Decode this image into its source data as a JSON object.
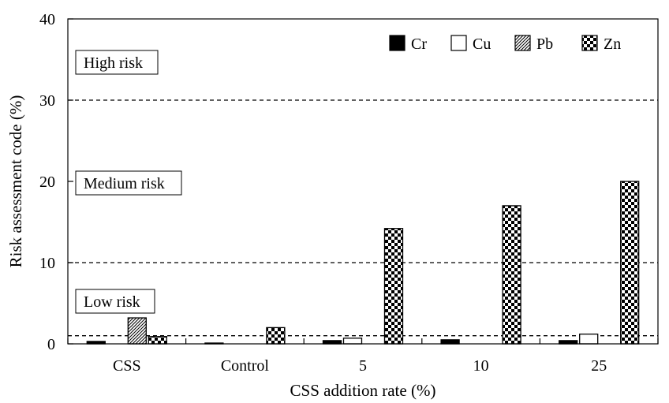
{
  "chart_data": {
    "type": "bar",
    "categories": [
      "CSS",
      "Control",
      "5",
      "10",
      "25"
    ],
    "series": [
      {
        "name": "Cr",
        "pattern": "solid",
        "values": [
          0.3,
          0.1,
          0.4,
          0.5,
          0.4
        ]
      },
      {
        "name": "Cu",
        "pattern": "hollow",
        "values": [
          0.0,
          0.0,
          0.7,
          0.0,
          1.2
        ]
      },
      {
        "name": "Pb",
        "pattern": "hatch",
        "values": [
          3.2,
          0.0,
          0.0,
          0.0,
          0.0
        ]
      },
      {
        "name": "Zn",
        "pattern": "checker",
        "values": [
          0.9,
          2.0,
          14.2,
          17.0,
          20.0
        ]
      }
    ],
    "xlabel": "CSS addition rate (%)",
    "ylabel": "Risk assessment code (%)",
    "ylim": [
      0,
      40
    ],
    "yticks": [
      "0",
      "10",
      "20",
      "30",
      "40"
    ],
    "reference_lines": [
      1,
      10,
      30
    ],
    "annotations": [
      "High risk",
      "Medium risk",
      "Low risk"
    ],
    "legend_position": "top-right",
    "grid": false
  }
}
